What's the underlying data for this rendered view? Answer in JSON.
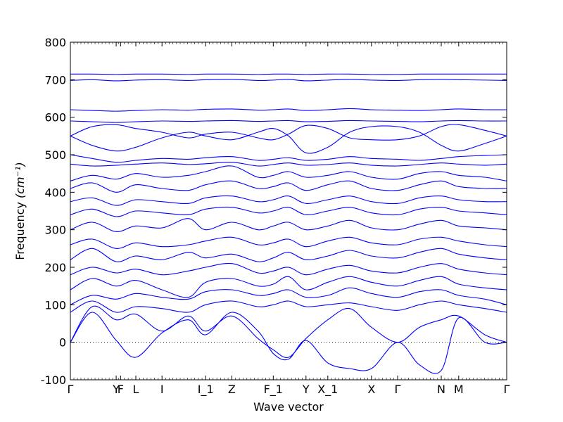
{
  "chart_data": {
    "type": "line",
    "xlabel": "Wave vector",
    "ylabel": "Frequency",
    "ylabel_unit_math": "(cm⁻¹)",
    "ylim": [
      -100,
      800
    ],
    "yticks": [
      -100,
      0,
      100,
      200,
      300,
      400,
      500,
      600,
      700,
      800
    ],
    "xlim": [
      0,
      100
    ],
    "high_symmetry_points": [
      {
        "label": "Γ",
        "x": 0
      },
      {
        "label": "Y",
        "x": 10.5
      },
      {
        "label": "F",
        "x": 11.5
      },
      {
        "label": "L",
        "x": 15
      },
      {
        "label": "I",
        "x": 21
      },
      {
        "label": "I_1",
        "x": 31
      },
      {
        "label": "Z",
        "x": 37
      },
      {
        "label": "F_1",
        "x": 46.5
      },
      {
        "label": "Y",
        "x": 54
      },
      {
        "label": "X_1",
        "x": 59
      },
      {
        "label": "X",
        "x": 69
      },
      {
        "label": "Γ",
        "x": 75
      },
      {
        "label": "N",
        "x": 85
      },
      {
        "label": "M",
        "x": 89
      },
      {
        "label": "Γ",
        "x": 100
      }
    ],
    "zero_line": true,
    "line_color": "#0000ff",
    "zero_line_color": "#000000",
    "bands": [
      {
        "x": [
          0,
          5,
          10.5,
          15,
          21,
          27,
          31,
          37,
          43,
          46.5,
          50,
          54,
          59,
          64,
          69,
          75,
          80,
          85,
          89,
          95,
          100
        ],
        "y": [
          0,
          80,
          5,
          -40,
          25,
          60,
          20,
          80,
          30,
          -30,
          -45,
          5,
          -55,
          -70,
          -70,
          0,
          -60,
          -75,
          65,
          0,
          0
        ]
      },
      {
        "x": [
          0,
          5,
          10.5,
          15,
          21,
          27,
          31,
          37,
          43,
          46.5,
          50,
          54,
          59,
          64,
          69,
          75,
          80,
          85,
          89,
          95,
          100
        ],
        "y": [
          0,
          95,
          60,
          75,
          30,
          70,
          30,
          70,
          10,
          -20,
          -40,
          10,
          60,
          90,
          40,
          0,
          40,
          60,
          70,
          20,
          0
        ]
      },
      {
        "x": [
          0,
          5,
          10.5,
          15,
          21,
          27,
          31,
          37,
          43,
          46.5,
          50,
          54,
          59,
          64,
          69,
          75,
          80,
          85,
          89,
          95,
          100
        ],
        "y": [
          80,
          110,
          80,
          95,
          90,
          80,
          100,
          110,
          95,
          100,
          110,
          95,
          100,
          105,
          95,
          85,
          100,
          110,
          100,
          90,
          80
        ]
      },
      {
        "x": [
          0,
          5,
          10.5,
          15,
          21,
          27,
          31,
          37,
          43,
          46.5,
          50,
          54,
          59,
          64,
          69,
          75,
          80,
          85,
          89,
          95,
          100
        ],
        "y": [
          100,
          125,
          115,
          130,
          120,
          115,
          135,
          140,
          125,
          130,
          140,
          120,
          125,
          145,
          130,
          120,
          135,
          140,
          125,
          115,
          100
        ]
      },
      {
        "x": [
          0,
          5,
          10.5,
          15,
          21,
          27,
          31,
          37,
          43,
          46.5,
          50,
          54,
          59,
          64,
          69,
          75,
          80,
          85,
          89,
          95,
          100
        ],
        "y": [
          140,
          170,
          150,
          165,
          140,
          120,
          160,
          170,
          150,
          155,
          175,
          140,
          160,
          175,
          160,
          150,
          165,
          175,
          155,
          145,
          140
        ]
      },
      {
        "x": [
          0,
          5,
          10.5,
          15,
          21,
          27,
          31,
          37,
          43,
          46.5,
          50,
          54,
          59,
          64,
          69,
          75,
          80,
          85,
          89,
          95,
          100
        ],
        "y": [
          180,
          200,
          185,
          195,
          180,
          190,
          200,
          210,
          185,
          190,
          200,
          180,
          195,
          205,
          190,
          185,
          200,
          210,
          195,
          185,
          180
        ]
      },
      {
        "x": [
          0,
          5,
          10.5,
          15,
          21,
          27,
          31,
          37,
          43,
          46.5,
          50,
          54,
          59,
          64,
          69,
          75,
          80,
          85,
          89,
          95,
          100
        ],
        "y": [
          220,
          250,
          215,
          230,
          220,
          240,
          225,
          235,
          215,
          225,
          240,
          220,
          230,
          245,
          230,
          225,
          240,
          250,
          235,
          225,
          220
        ]
      },
      {
        "x": [
          0,
          5,
          10.5,
          15,
          21,
          27,
          31,
          37,
          43,
          46.5,
          50,
          54,
          59,
          64,
          69,
          75,
          80,
          85,
          89,
          95,
          100
        ],
        "y": [
          260,
          275,
          250,
          265,
          255,
          260,
          270,
          280,
          260,
          265,
          275,
          255,
          270,
          280,
          265,
          260,
          275,
          280,
          270,
          260,
          255
        ]
      },
      {
        "x": [
          0,
          5,
          10.5,
          15,
          21,
          27,
          31,
          37,
          43,
          46.5,
          50,
          54,
          59,
          64,
          69,
          75,
          80,
          85,
          89,
          95,
          100
        ],
        "y": [
          300,
          320,
          295,
          310,
          305,
          330,
          300,
          320,
          300,
          310,
          320,
          300,
          310,
          325,
          305,
          300,
          315,
          325,
          310,
          305,
          300
        ]
      },
      {
        "x": [
          0,
          5,
          10.5,
          15,
          21,
          27,
          31,
          37,
          43,
          46.5,
          50,
          54,
          59,
          64,
          69,
          75,
          80,
          85,
          89,
          95,
          100
        ],
        "y": [
          340,
          355,
          335,
          350,
          345,
          340,
          355,
          360,
          345,
          350,
          360,
          340,
          350,
          360,
          345,
          340,
          355,
          360,
          350,
          345,
          340
        ]
      },
      {
        "x": [
          0,
          5,
          10.5,
          15,
          21,
          27,
          31,
          37,
          43,
          46.5,
          50,
          54,
          59,
          64,
          69,
          75,
          80,
          85,
          89,
          95,
          100
        ],
        "y": [
          375,
          385,
          365,
          380,
          375,
          370,
          385,
          390,
          375,
          380,
          390,
          370,
          380,
          390,
          375,
          370,
          385,
          390,
          380,
          375,
          375
        ]
      },
      {
        "x": [
          0,
          5,
          10.5,
          15,
          21,
          27,
          31,
          37,
          43,
          46.5,
          50,
          54,
          59,
          64,
          69,
          75,
          80,
          85,
          89,
          95,
          100
        ],
        "y": [
          410,
          425,
          400,
          420,
          410,
          405,
          420,
          430,
          410,
          415,
          425,
          405,
          420,
          430,
          410,
          405,
          420,
          430,
          415,
          410,
          410
        ]
      },
      {
        "x": [
          0,
          5,
          10.5,
          15,
          21,
          27,
          31,
          37,
          43,
          46.5,
          50,
          54,
          59,
          64,
          69,
          75,
          80,
          85,
          89,
          95,
          100
        ],
        "y": [
          430,
          445,
          435,
          450,
          440,
          445,
          455,
          470,
          440,
          445,
          455,
          440,
          445,
          455,
          440,
          435,
          450,
          455,
          445,
          440,
          430
        ]
      },
      {
        "x": [
          0,
          5,
          10.5,
          15,
          21,
          27,
          31,
          37,
          43,
          46.5,
          50,
          54,
          59,
          64,
          69,
          75,
          80,
          85,
          89,
          95,
          100
        ],
        "y": [
          475,
          470,
          472,
          475,
          478,
          474,
          476,
          480,
          470,
          474,
          478,
          472,
          474,
          478,
          472,
          470,
          474,
          478,
          475,
          472,
          475
        ]
      },
      {
        "x": [
          0,
          5,
          10.5,
          15,
          21,
          27,
          31,
          37,
          43,
          46.5,
          50,
          54,
          59,
          64,
          69,
          75,
          80,
          85,
          89,
          95,
          100
        ],
        "y": [
          500,
          490,
          480,
          485,
          490,
          488,
          492,
          495,
          485,
          488,
          492,
          485,
          488,
          495,
          490,
          488,
          485,
          490,
          495,
          498,
          500
        ]
      },
      {
        "x": [
          0,
          5,
          10.5,
          15,
          21,
          27,
          31,
          37,
          43,
          46.5,
          50,
          54,
          59,
          64,
          69,
          75,
          80,
          85,
          89,
          95,
          100
        ],
        "y": [
          550,
          525,
          510,
          520,
          545,
          560,
          550,
          540,
          560,
          570,
          550,
          505,
          520,
          560,
          575,
          575,
          560,
          525,
          510,
          530,
          550
        ]
      },
      {
        "x": [
          0,
          5,
          10.5,
          15,
          21,
          27,
          31,
          37,
          43,
          46.5,
          50,
          54,
          59,
          64,
          69,
          75,
          80,
          85,
          89,
          95,
          100
        ],
        "y": [
          550,
          575,
          580,
          570,
          560,
          545,
          555,
          560,
          545,
          540,
          555,
          578,
          570,
          545,
          540,
          540,
          550,
          575,
          580,
          565,
          550
        ]
      },
      {
        "x": [
          0,
          5,
          10.5,
          15,
          21,
          27,
          31,
          37,
          43,
          46.5,
          50,
          54,
          59,
          64,
          69,
          75,
          80,
          85,
          89,
          95,
          100
        ],
        "y": [
          590,
          588,
          586,
          588,
          590,
          589,
          590,
          591,
          589,
          590,
          591,
          588,
          589,
          591,
          590,
          589,
          588,
          590,
          591,
          590,
          590
        ]
      },
      {
        "x": [
          0,
          5,
          10.5,
          15,
          21,
          27,
          31,
          37,
          43,
          46.5,
          50,
          54,
          59,
          64,
          69,
          75,
          80,
          85,
          89,
          95,
          100
        ],
        "y": [
          620,
          618,
          616,
          618,
          620,
          619,
          621,
          622,
          619,
          620,
          622,
          618,
          620,
          623,
          620,
          619,
          618,
          620,
          622,
          620,
          620
        ]
      },
      {
        "x": [
          0,
          5,
          10.5,
          15,
          21,
          27,
          31,
          37,
          43,
          46.5,
          50,
          54,
          59,
          64,
          69,
          75,
          80,
          85,
          89,
          95,
          100
        ],
        "y": [
          698,
          700,
          697,
          699,
          700,
          698,
          700,
          701,
          698,
          699,
          701,
          697,
          699,
          701,
          699,
          698,
          700,
          701,
          700,
          699,
          698
        ]
      },
      {
        "x": [
          0,
          5,
          10.5,
          15,
          21,
          27,
          31,
          37,
          43,
          46.5,
          50,
          54,
          59,
          64,
          69,
          75,
          80,
          85,
          89,
          95,
          100
        ],
        "y": [
          715,
          715,
          714,
          715,
          715,
          714,
          715,
          715,
          714,
          715,
          715,
          714,
          715,
          715,
          714,
          714,
          715,
          715,
          715,
          715,
          715
        ]
      }
    ]
  }
}
